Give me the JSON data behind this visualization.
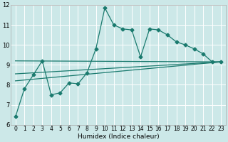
{
  "xlabel": "Humidex (Indice chaleur)",
  "bg_color": "#cce8e8",
  "grid_color": "#ffffff",
  "line_color": "#1a7a6e",
  "xmin": -0.5,
  "xmax": 23.5,
  "ymin": 6,
  "ymax": 12,
  "x_ticks": [
    0,
    1,
    2,
    3,
    4,
    5,
    6,
    7,
    8,
    9,
    10,
    11,
    12,
    13,
    14,
    15,
    16,
    17,
    18,
    19,
    20,
    21,
    22,
    23
  ],
  "y_ticks": [
    6,
    7,
    8,
    9,
    10,
    11,
    12
  ],
  "series_main_x": [
    0,
    1,
    2,
    3,
    4,
    5,
    6,
    7,
    8,
    9,
    10,
    11,
    12,
    13,
    14,
    15,
    16,
    17,
    18,
    19,
    20,
    21,
    22,
    23
  ],
  "series_main_y": [
    6.4,
    7.8,
    8.5,
    9.2,
    7.5,
    7.6,
    8.1,
    8.05,
    8.6,
    9.8,
    11.85,
    11.0,
    10.8,
    10.75,
    9.4,
    10.8,
    10.75,
    10.5,
    10.15,
    10.0,
    9.8,
    9.55,
    9.15,
    9.15
  ],
  "trend1_x": [
    0,
    23
  ],
  "trend1_y": [
    8.2,
    9.15
  ],
  "trend2_x": [
    0,
    23
  ],
  "trend2_y": [
    8.55,
    9.15
  ],
  "trend3_x": [
    0,
    23
  ],
  "trend3_y": [
    9.2,
    9.15
  ]
}
